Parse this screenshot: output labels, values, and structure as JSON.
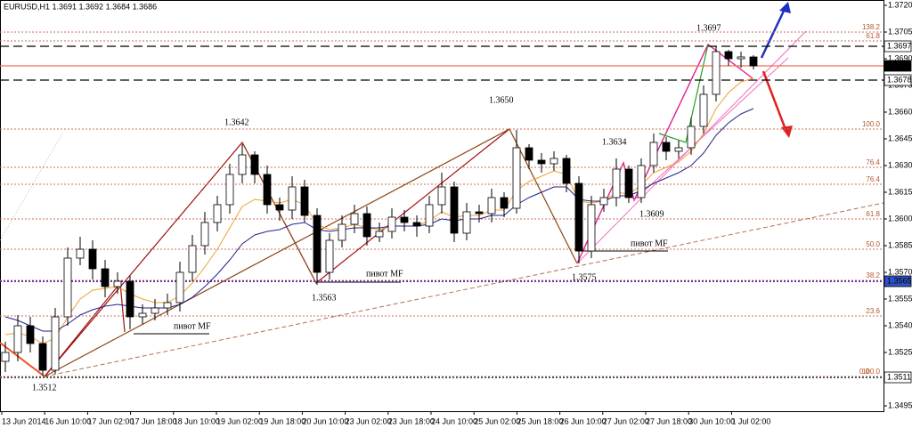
{
  "chart_data": {
    "type": "candlestick",
    "title": "EURUSD,H1  1.3691 1.3692 1.3684 1.3686",
    "ylim": [
      1.3493,
      1.3723
    ],
    "yticks": [
      {
        "value": 1.372,
        "label": "1.3720"
      },
      1.3705,
      {
        "value": 1.369,
        "label": "1.3690"
      },
      1.3675,
      {
        "value": 1.366,
        "label": "1.3660"
      },
      1.3645,
      {
        "value": 1.363,
        "label": "1.3630"
      },
      1.3615,
      {
        "value": 1.36,
        "label": "1.3600"
      },
      1.3585,
      {
        "value": 1.357,
        "label": "1.3570"
      },
      1.3555,
      {
        "value": 1.354,
        "label": "1.3540"
      },
      1.3525,
      1.3495
    ],
    "xtick_labels": [
      "13 Jun 2014",
      "16 Jun 10:00",
      "17 Jun 02:00",
      "17 Jun 18:00",
      "18 Jun 10:00",
      "19 Jun 02:00",
      "19 Jun 18:00",
      "20 Jun 10:00",
      "23 Jun 02:00",
      "23 Jun 18:00",
      "24 Jun 10:00",
      "25 Jun 02:00",
      "25 Jun 18:00",
      "26 Jun 10:00",
      "27 Jun 02:00",
      "27 Jun 18:00",
      "30 Jun 10:00",
      "1 Jul 02:00"
    ],
    "open": [
      1.352,
      1.3525,
      1.354,
      1.353,
      1.3515,
      1.3545,
      1.3578,
      1.3583,
      1.3572,
      1.3562,
      1.3565,
      1.3545,
      1.3547,
      1.355,
      1.3553,
      1.357,
      1.3585,
      1.3598,
      1.3608,
      1.3625,
      1.3636,
      1.3625,
      1.3608,
      1.3605,
      1.3618,
      1.3602,
      1.357,
      1.3588,
      1.3597,
      1.3603,
      1.359,
      1.3593,
      1.3601,
      1.3598,
      1.3596,
      1.3608,
      1.3618,
      1.3592,
      1.3604,
      1.3603,
      1.3612,
      1.3606,
      1.364,
      1.3633,
      1.3631,
      1.3634,
      1.362,
      1.3582,
      1.3608,
      1.3612,
      1.3628,
      1.3612,
      1.363,
      1.3643,
      1.3638,
      1.364,
      1.3652,
      1.367,
      1.3694,
      1.369,
      1.3691
    ],
    "high": [
      1.3531,
      1.3546,
      1.3545,
      1.3534,
      1.355,
      1.3584,
      1.359,
      1.3588,
      1.3577,
      1.357,
      1.3568,
      1.3552,
      1.3555,
      1.3558,
      1.3576,
      1.3591,
      1.3604,
      1.3613,
      1.3631,
      1.3642,
      1.3638,
      1.363,
      1.3612,
      1.3624,
      1.3622,
      1.3606,
      1.3592,
      1.3602,
      1.3608,
      1.3607,
      1.3598,
      1.3606,
      1.3605,
      1.3602,
      1.3613,
      1.3626,
      1.3621,
      1.3609,
      1.3608,
      1.3617,
      1.3615,
      1.365,
      1.3642,
      1.3637,
      1.3638,
      1.3636,
      1.3624,
      1.3613,
      1.3617,
      1.3634,
      1.363,
      1.3634,
      1.3648,
      1.3646,
      1.3644,
      1.3657,
      1.3675,
      1.3697,
      1.3695,
      1.3694,
      1.3692
    ],
    "low": [
      1.3514,
      1.352,
      1.3525,
      1.3512,
      1.3513,
      1.354,
      1.3574,
      1.3566,
      1.3556,
      1.3558,
      1.3538,
      1.3541,
      1.3543,
      1.3546,
      1.3548,
      1.3565,
      1.358,
      1.3593,
      1.3603,
      1.362,
      1.362,
      1.3603,
      1.3599,
      1.36,
      1.3598,
      1.3563,
      1.3566,
      1.3584,
      1.3592,
      1.3585,
      1.3587,
      1.3589,
      1.3593,
      1.359,
      1.3592,
      1.3603,
      1.3587,
      1.3588,
      1.3598,
      1.3598,
      1.3601,
      1.3603,
      1.3628,
      1.3626,
      1.3627,
      1.3615,
      1.3575,
      1.3578,
      1.3604,
      1.3607,
      1.3609,
      1.3609,
      1.3626,
      1.3633,
      1.3634,
      1.3636,
      1.3648,
      1.3666,
      1.3686,
      1.3685,
      1.3684
    ],
    "close": [
      1.3525,
      1.354,
      1.353,
      1.3515,
      1.3545,
      1.3578,
      1.3583,
      1.3572,
      1.3562,
      1.3565,
      1.3545,
      1.3547,
      1.355,
      1.3553,
      1.357,
      1.3585,
      1.3598,
      1.3608,
      1.3625,
      1.3636,
      1.3625,
      1.3608,
      1.3605,
      1.3618,
      1.3602,
      1.357,
      1.3588,
      1.3597,
      1.3603,
      1.359,
      1.3593,
      1.3601,
      1.3598,
      1.3596,
      1.3608,
      1.3618,
      1.3592,
      1.3604,
      1.3603,
      1.3612,
      1.3606,
      1.364,
      1.3633,
      1.3631,
      1.3634,
      1.362,
      1.3582,
      1.3608,
      1.3612,
      1.3628,
      1.3612,
      1.363,
      1.3643,
      1.3638,
      1.364,
      1.3652,
      1.367,
      1.3694,
      1.369,
      1.3691,
      1.3686
    ],
    "up_color": "#ffffff",
    "down_color": "#000000",
    "moving_averages": [
      {
        "color": "#f0a030",
        "values": [
          1.3535,
          1.3536,
          1.3534,
          1.353,
          1.3533,
          1.3545,
          1.3555,
          1.356,
          1.3561,
          1.3562,
          1.3558,
          1.3555,
          1.3553,
          1.3553,
          1.3557,
          1.3564,
          1.3573,
          1.3583,
          1.3595,
          1.3607,
          1.3611,
          1.361,
          1.3609,
          1.3611,
          1.3608,
          1.3597,
          1.3594,
          1.3595,
          1.3597,
          1.3595,
          1.3594,
          1.3596,
          1.3596,
          1.3596,
          1.3599,
          1.3604,
          1.3601,
          1.3602,
          1.3602,
          1.3605,
          1.3605,
          1.3616,
          1.3621,
          1.3624,
          1.3627,
          1.3625,
          1.361,
          1.3609,
          1.361,
          1.3615,
          1.3614,
          1.3619,
          1.3626,
          1.3629,
          1.3632,
          1.3638,
          1.3648,
          1.3662,
          1.3671,
          1.3677,
          1.3679
        ]
      },
      {
        "color": "#22228a",
        "values": [
          1.3545,
          1.3543,
          1.354,
          1.3537,
          1.3537,
          1.3541,
          1.3546,
          1.3549,
          1.3551,
          1.3552,
          1.3551,
          1.355,
          1.355,
          1.355,
          1.3552,
          1.3556,
          1.3562,
          1.3569,
          1.3577,
          1.3586,
          1.3591,
          1.3593,
          1.3594,
          1.3597,
          1.3598,
          1.3594,
          1.3593,
          1.3594,
          1.3595,
          1.3595,
          1.3595,
          1.3596,
          1.3596,
          1.3596,
          1.3597,
          1.36,
          1.3599,
          1.36,
          1.36,
          1.3602,
          1.3602,
          1.3608,
          1.3612,
          1.3615,
          1.3618,
          1.3618,
          1.3611,
          1.361,
          1.361,
          1.3613,
          1.3613,
          1.3616,
          1.362,
          1.3623,
          1.3626,
          1.363,
          1.3637,
          1.3647,
          1.3654,
          1.3659,
          1.3662
        ]
      }
    ],
    "fib_levels": [
      {
        "label": "138.2",
        "value": 1.3705
      },
      {
        "label": "61.8",
        "value": 1.37
      },
      {
        "label": "100.0",
        "value": 1.36505
      },
      {
        "label": "76.4",
        "value": 1.3629
      },
      {
        "label": "76.4",
        "value": 1.36195
      },
      {
        "label": "61.8",
        "value": 1.36
      },
      {
        "label": "50.0",
        "value": 1.3583
      },
      {
        "label": "38.2",
        "value": 1.35655
      },
      {
        "label": "23.6",
        "value": 1.35455
      },
      {
        "label": "0.0",
        "value": 1.35115
      },
      {
        "label": "100.0",
        "value": 1.35115
      }
    ],
    "price_markers": [
      {
        "value": 1.3697,
        "fill": "#ffffff",
        "text_color": "#000000",
        "line": "dashed",
        "line_color": "#000000"
      },
      {
        "value": 1.3686,
        "fill": "#000000",
        "text_color": "#ffffff",
        "line": "solid",
        "line_color": "#f07050"
      },
      {
        "value": 1.3678,
        "fill": "#ffffff",
        "text_color": "#000000",
        "line": "dashed",
        "line_color": "#000000"
      },
      {
        "value": 1.3565,
        "fill": "#3050c8",
        "text_color": "#ffffff",
        "line": "dotted",
        "line_color": "#7030a0"
      },
      {
        "value": 1.3511,
        "fill": "#ffffff",
        "text_color": "#000000",
        "line": "dotted",
        "line_color": "#555555"
      }
    ],
    "annotations": [
      "1.3697",
      "1.3650",
      "1.3642",
      "1.3634",
      "1.3609",
      "1.3575",
      "1.3563",
      "1.3512",
      "пивот MF",
      "пивот MF",
      "пивот MF"
    ]
  }
}
